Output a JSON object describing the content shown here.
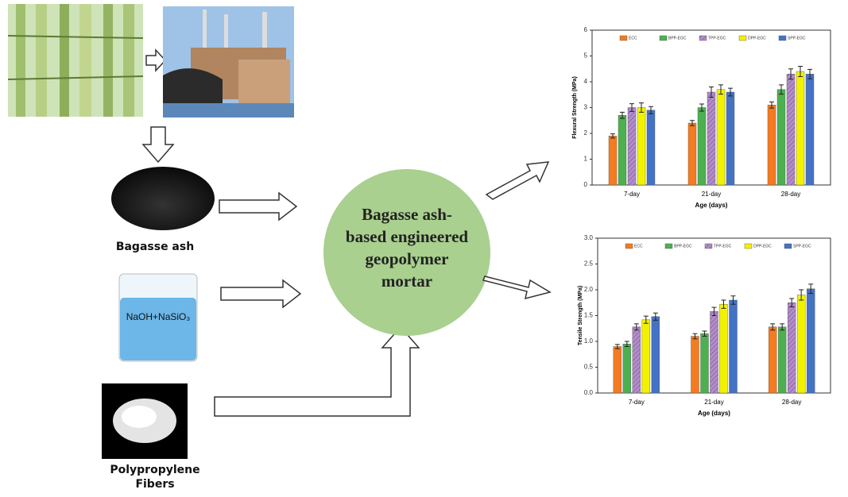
{
  "diagram": {
    "bagasse_label": "Bagasse ash",
    "solution_label": "NaOH+NaSiO₃",
    "center_lines": [
      "Bagasse ash-",
      "based engineered",
      "geopolymer",
      "mortar"
    ],
    "fibers_lines": [
      "Polypropylene",
      "Fibers"
    ]
  },
  "chart_data": [
    {
      "type": "bar",
      "y_label": "Flexural Strength (MPa)",
      "x_label": "Age (days)",
      "categories": [
        "7-day",
        "21-day",
        "28-day"
      ],
      "ylim": [
        0,
        6
      ],
      "yticks": [
        0,
        1,
        2,
        3,
        4,
        5,
        6
      ],
      "series": [
        {
          "name": "ECC",
          "color": "#f47b20",
          "values": [
            1.9,
            2.4,
            3.1
          ],
          "errors": [
            0.08,
            0.1,
            0.12
          ]
        },
        {
          "name": "BPP-EGC",
          "color": "#4cb050",
          "values": [
            2.7,
            3.0,
            3.7
          ],
          "errors": [
            0.12,
            0.14,
            0.18
          ]
        },
        {
          "name": "TPP-EGC",
          "color": "#b48ccb",
          "values": [
            3.0,
            3.6,
            4.3
          ],
          "errors": [
            0.15,
            0.2,
            0.2
          ]
        },
        {
          "name": "DPP-EGC",
          "color": "#f2f200",
          "values": [
            3.0,
            3.7,
            4.4
          ],
          "errors": [
            0.18,
            0.18,
            0.2
          ]
        },
        {
          "name": "SPP-EGC",
          "color": "#4472c4",
          "values": [
            2.9,
            3.6,
            4.3
          ],
          "errors": [
            0.14,
            0.15,
            0.18
          ]
        }
      ]
    },
    {
      "type": "bar",
      "y_label": "Tensile Strength (MPa)",
      "x_label": "Age (days)",
      "categories": [
        "7-day",
        "21-day",
        "28-day"
      ],
      "ylim": [
        0,
        3
      ],
      "yticks": [
        {
          "value": 0,
          "label": "0.0"
        },
        {
          "value": 0.5,
          "label": "0.5"
        },
        {
          "value": 1,
          "label": "1.0"
        },
        {
          "value": 1.5,
          "label": "1.5"
        },
        {
          "value": 2,
          "label": "2.0"
        },
        {
          "value": 2.5,
          "label": "2.5"
        },
        {
          "value": 3,
          "label": "3.0"
        }
      ],
      "series": [
        {
          "name": "ECC",
          "color": "#f47b20",
          "values": [
            0.9,
            1.1,
            1.28
          ],
          "errors": [
            0.04,
            0.05,
            0.06
          ]
        },
        {
          "name": "BPP-EGC",
          "color": "#4cb050",
          "values": [
            0.95,
            1.15,
            1.28
          ],
          "errors": [
            0.05,
            0.05,
            0.06
          ]
        },
        {
          "name": "TPP-EGC",
          "color": "#b48ccb",
          "values": [
            1.28,
            1.58,
            1.75
          ],
          "errors": [
            0.06,
            0.08,
            0.08
          ]
        },
        {
          "name": "DPP-EGC",
          "color": "#f2f200",
          "values": [
            1.42,
            1.72,
            1.9
          ],
          "errors": [
            0.07,
            0.08,
            0.1
          ]
        },
        {
          "name": "SPP-EGC",
          "color": "#4472c4",
          "values": [
            1.48,
            1.8,
            2.02
          ],
          "errors": [
            0.07,
            0.08,
            0.09
          ]
        }
      ]
    }
  ]
}
